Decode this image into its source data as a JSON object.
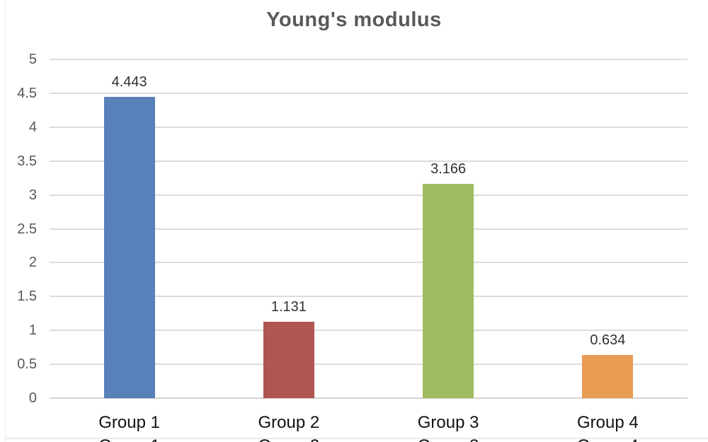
{
  "chart_data": {
    "type": "bar",
    "title": "Young's modulus",
    "categories": [
      "Group 1",
      "Group 2",
      "Group 3",
      "Group 4"
    ],
    "values": [
      4.443,
      1.131,
      3.166,
      0.634
    ],
    "value_labels": [
      "4.443",
      "1.131",
      "3.166",
      "0.634"
    ],
    "bar_colors": [
      "#5880B9",
      "#AF5552",
      "#A0BC62",
      "#E89B52"
    ],
    "ylim": [
      0,
      5
    ],
    "ytick_labels": [
      "5",
      "4.5",
      "4",
      "3.5",
      "3",
      "2.5",
      "2",
      "1.5",
      "1",
      "0.5",
      "0"
    ],
    "xlabel": "",
    "ylabel": "",
    "grid": true,
    "legend_position": "none",
    "clipped_second_category_row": true,
    "colors": {
      "title": "#595959",
      "axis_tick_labels": "#595959",
      "category_labels": "#121212",
      "data_labels": "#313131",
      "gridline": "#dcdcdc",
      "baseline": "#d4d4d4",
      "background": "#ffffff",
      "frame_line": "#e9e9e9"
    }
  }
}
